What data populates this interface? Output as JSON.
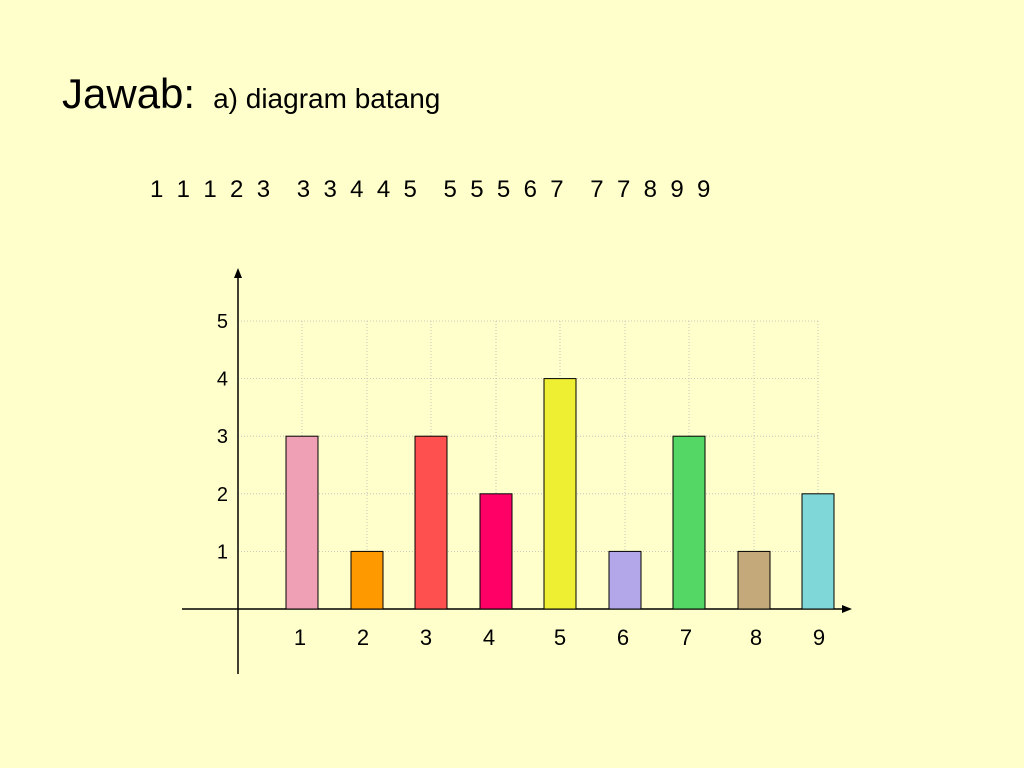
{
  "slide": {
    "title": "Jawab:",
    "subtitle": "a) diagram batang",
    "data_groups": [
      "1  1  1  2  3",
      "3  3  4  4  5",
      "5  5  5  6  7",
      "7  7  8  9  9"
    ]
  },
  "chart_data": {
    "type": "bar",
    "categories": [
      "1",
      "2",
      "3",
      "4",
      "5",
      "6",
      "7",
      "8",
      "9"
    ],
    "values": [
      3,
      1,
      3,
      2,
      4,
      1,
      3,
      1,
      2
    ],
    "colors": [
      "#EFA0B5",
      "#FF9900",
      "#FF5050",
      "#FF0066",
      "#EEEE33",
      "#B3A7EA",
      "#55D765",
      "#C4AA7A",
      "#80D7D7"
    ],
    "yticks": [
      1,
      2,
      3,
      4,
      5
    ],
    "ylim": [
      0,
      5
    ],
    "grid": true,
    "title": "",
    "xlabel": "",
    "ylabel": ""
  }
}
